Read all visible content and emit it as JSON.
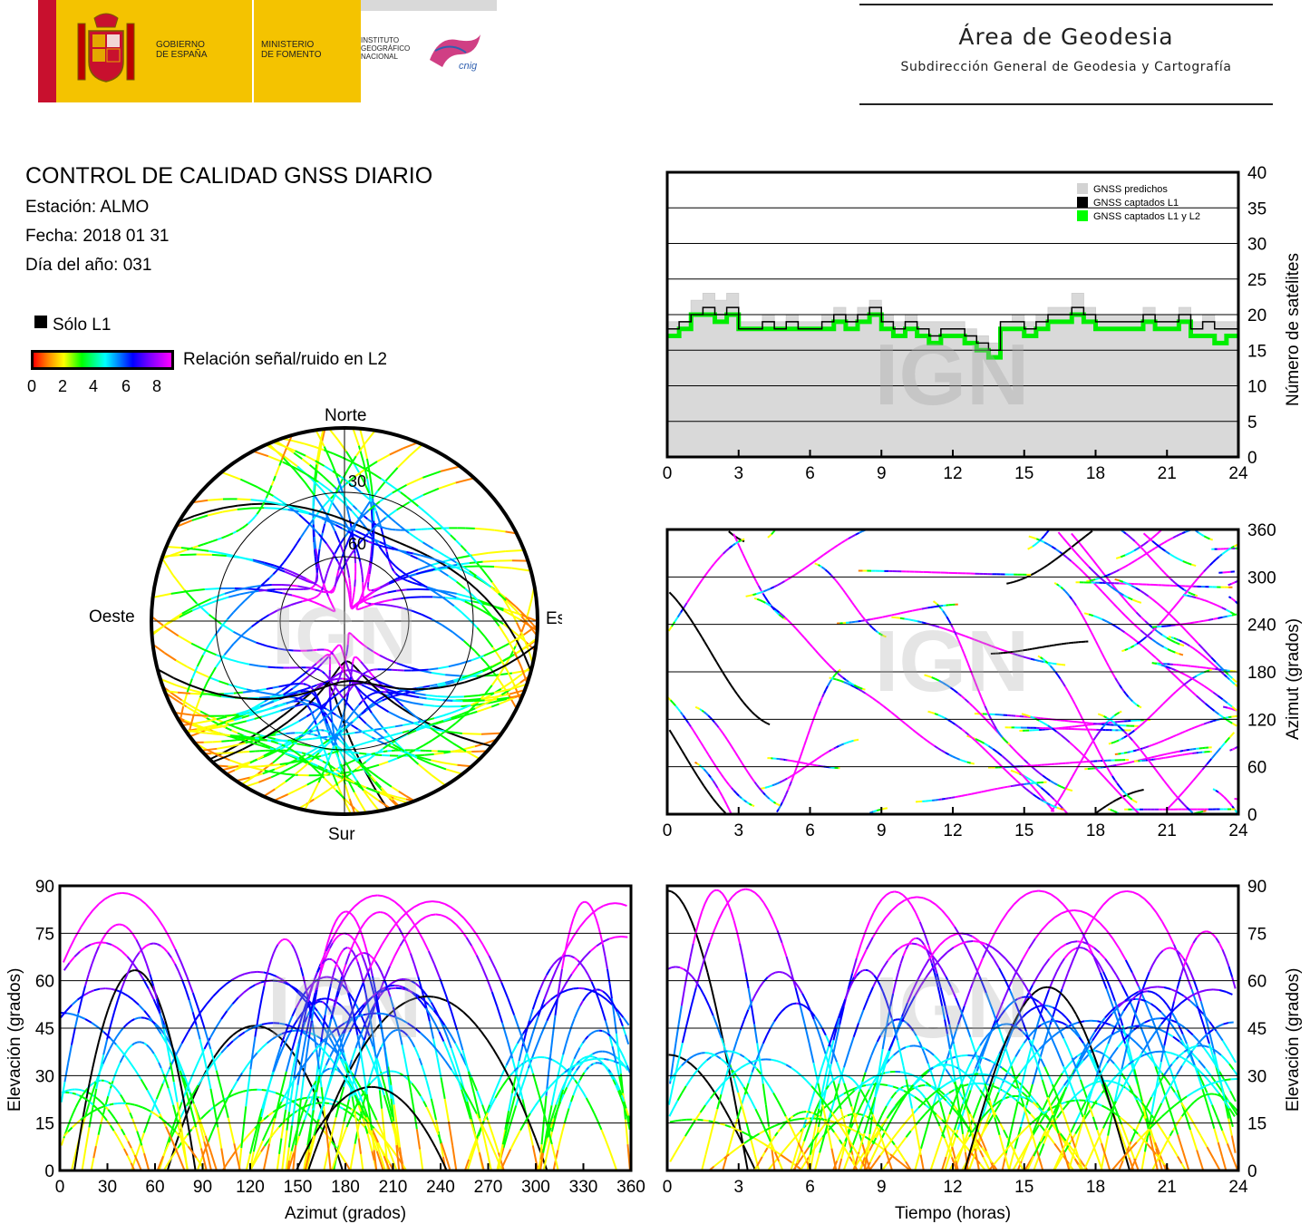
{
  "header": {
    "logo_gobierno": "GOBIERNO\nDE ESPAÑA",
    "logo_ministerio": "MINISTERIO\nDE FOMENTO",
    "logo_ign": "INSTITUTO\nGEOGRÁFICO\nNACIONAL",
    "logo_cnig": "cnig",
    "area_title": "Área de Geodesia",
    "area_subtitle": "Subdirección General de Geodesia y Cartografía"
  },
  "info": {
    "title": "CONTROL DE CALIDAD GNSS DIARIO",
    "station": "Estación: ALMO",
    "date": "Fecha: 2018 01 31",
    "doy": "Día del año: 031"
  },
  "legend": {
    "solo_l1": "Sólo L1",
    "snr_label": "Relación señal/ruido en L2",
    "colorbar_ticks": [
      "0",
      "2",
      "4",
      "6",
      "8"
    ],
    "colors": [
      "#ff0000",
      "#ff8000",
      "#ffff00",
      "#00ff00",
      "#00ffff",
      "#0080ff",
      "#0000ff",
      "#8000ff",
      "#ff00ff"
    ]
  },
  "watermark": "IGN",
  "chart_data": [
    {
      "id": "skyplot",
      "type": "scatter",
      "title": "",
      "directions": {
        "north": "Norte",
        "south": "Sur",
        "east": "Este",
        "west": "Oeste"
      },
      "elevation_rings": [
        "30",
        "60"
      ],
      "note_values": "tracks drawn as colored arcs; colors = SNR on L2"
    },
    {
      "id": "satellites",
      "type": "area",
      "ylabel": "Número de satélites",
      "xlim": [
        0,
        24
      ],
      "ylim": [
        0,
        40
      ],
      "xticks": [
        "0",
        "3",
        "6",
        "9",
        "12",
        "15",
        "18",
        "21",
        "24"
      ],
      "yticks": [
        "0",
        "5",
        "10",
        "15",
        "20",
        "25",
        "30",
        "35",
        "40"
      ],
      "legend": [
        "GNSS predichos",
        "GNSS captados L1",
        "GNSS captados L1 y L2"
      ],
      "legend_colors": [
        "#d3d3d3",
        "#000000",
        "#00ff00"
      ],
      "x": [
        0,
        0.5,
        1,
        1.5,
        2,
        2.5,
        3,
        3.5,
        4,
        4.5,
        5,
        5.5,
        6,
        6.5,
        7,
        7.5,
        8,
        8.5,
        9,
        9.5,
        10,
        10.5,
        11,
        11.5,
        12,
        12.5,
        13,
        13.5,
        14,
        14.5,
        15,
        15.5,
        16,
        16.5,
        17,
        17.5,
        18,
        18.5,
        19,
        19.5,
        20,
        20.5,
        21,
        21.5,
        22,
        22.5,
        23,
        23.5,
        24
      ],
      "predicted": [
        19,
        19,
        22,
        23,
        22,
        23,
        19,
        19,
        20,
        19,
        20,
        19,
        19,
        20,
        21,
        20,
        21,
        22,
        20,
        19,
        20,
        19,
        19,
        19,
        19,
        18,
        17,
        16,
        19,
        20,
        19,
        20,
        21,
        21,
        23,
        21,
        20,
        20,
        20,
        20,
        21,
        20,
        20,
        21,
        19,
        20,
        19,
        19,
        19
      ],
      "l1": [
        18,
        19,
        20,
        21,
        20,
        21,
        18,
        18,
        19,
        18,
        19,
        18,
        18,
        19,
        20,
        19,
        20,
        21,
        19,
        18,
        19,
        18,
        17,
        18,
        18,
        17,
        16,
        15,
        19,
        19,
        18,
        19,
        20,
        20,
        21,
        20,
        19,
        19,
        19,
        19,
        20,
        19,
        19,
        20,
        18,
        19,
        18,
        18,
        18
      ],
      "l1l2": [
        17,
        18,
        20,
        20,
        19,
        20,
        18,
        18,
        18,
        18,
        18,
        18,
        18,
        18,
        19,
        18,
        19,
        20,
        18,
        17,
        18,
        17,
        16,
        17,
        17,
        16,
        15,
        14,
        18,
        18,
        17,
        18,
        19,
        19,
        20,
        19,
        18,
        18,
        18,
        18,
        19,
        18,
        18,
        19,
        17,
        17,
        16,
        17,
        17
      ]
    },
    {
      "id": "azimuth_time",
      "type": "scatter",
      "ylabel": "Azimut (grados)",
      "xlim": [
        0,
        24
      ],
      "ylim": [
        0,
        360
      ],
      "xticks": [
        "0",
        "3",
        "6",
        "9",
        "12",
        "15",
        "18",
        "21",
        "24"
      ],
      "yticks": [
        "0",
        "60",
        "120",
        "180",
        "240",
        "300",
        "360"
      ]
    },
    {
      "id": "elevation_azimuth",
      "type": "scatter",
      "xlabel": "Azimut (grados)",
      "ylabel": "Elevación (grados)",
      "xlim": [
        0,
        360
      ],
      "ylim": [
        0,
        90
      ],
      "xticks": [
        "0",
        "30",
        "60",
        "90",
        "120",
        "150",
        "180",
        "210",
        "240",
        "270",
        "300",
        "330",
        "360"
      ],
      "yticks": [
        "0",
        "15",
        "30",
        "45",
        "60",
        "75",
        "90"
      ]
    },
    {
      "id": "elevation_time",
      "type": "scatter",
      "xlabel": "Tiempo (horas)",
      "ylabel": "Elevación (grados)",
      "xlim": [
        0,
        24
      ],
      "ylim": [
        0,
        90
      ],
      "xticks": [
        "0",
        "3",
        "6",
        "9",
        "12",
        "15",
        "18",
        "21",
        "24"
      ],
      "yticks": [
        "0",
        "15",
        "30",
        "45",
        "60",
        "75",
        "90"
      ]
    }
  ]
}
